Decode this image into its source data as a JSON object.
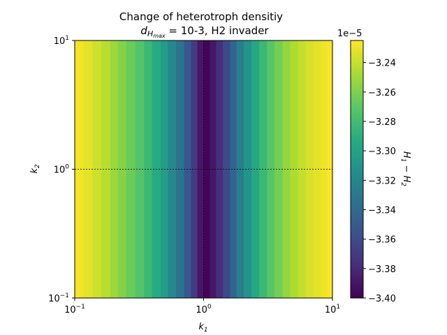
{
  "chart_data": {
    "type": "heatmap",
    "title_line1": "Change of heterotroph densitiy",
    "title_line2": "d_{H_max} = 10-3, H2 invader",
    "title_line2_parts": {
      "symbol": "d",
      "subscript": "H",
      "sub_subscript": "max",
      "rest": " = 10-3, H2 invader"
    },
    "xlabel": "k_1",
    "ylabel": "k_2",
    "x_scale": "log",
    "y_scale": "log",
    "xlim": [
      0.1,
      10
    ],
    "ylim": [
      0.1,
      10
    ],
    "x_ticks": [
      {
        "value": 0.1,
        "base": "10",
        "exp": "−1"
      },
      {
        "value": 1,
        "base": "10",
        "exp": "0"
      },
      {
        "value": 10,
        "base": "10",
        "exp": "1"
      }
    ],
    "y_ticks": [
      {
        "value": 0.1,
        "base": "10",
        "exp": "−1"
      },
      {
        "value": 1,
        "base": "10",
        "exp": "0"
      },
      {
        "value": 10,
        "base": "10",
        "exp": "1"
      }
    ],
    "colormap": "viridis",
    "color_range": [
      -3.4e-05,
      -3.225e-05
    ],
    "colorbar": {
      "label": "H_1 − H_2",
      "offset_text": "1e−5",
      "ticks": [
        {
          "value": -3.24,
          "label": "−3.24"
        },
        {
          "value": -3.26,
          "label": "−3.26"
        },
        {
          "value": -3.28,
          "label": "−3.28"
        },
        {
          "value": -3.3,
          "label": "−3.30"
        },
        {
          "value": -3.32,
          "label": "−3.32"
        },
        {
          "value": -3.34,
          "label": "−3.34"
        },
        {
          "value": -3.36,
          "label": "−3.36"
        },
        {
          "value": -3.38,
          "label": "−3.38"
        },
        {
          "value": -3.4,
          "label": "−3.40"
        }
      ]
    },
    "varies_along": "k_1 only (constant along k_2)",
    "k1_columns": [
      0.1,
      0.117,
      0.1374,
      0.1611,
      0.1889,
      0.2154,
      0.2512,
      0.2947,
      0.3455,
      0.3981,
      0.4642,
      0.5275,
      0.6105,
      0.7055,
      0.8,
      0.8936,
      1.0,
      1.1237,
      1.25,
      1.41,
      1.6,
      1.8,
      2.05,
      2.35,
      2.7,
      3.1,
      3.55,
      4.1,
      4.7,
      5.4,
      6.2,
      7.1,
      8.1,
      9.0
    ],
    "values_1e-5": [
      -3.228,
      -3.232,
      -3.238,
      -3.244,
      -3.252,
      -3.258,
      -3.266,
      -3.273,
      -3.283,
      -3.293,
      -3.304,
      -3.318,
      -3.334,
      -3.352,
      -3.37,
      -3.389,
      -3.398,
      -3.389,
      -3.377,
      -3.361,
      -3.343,
      -3.326,
      -3.31,
      -3.296,
      -3.283,
      -3.272,
      -3.263,
      -3.254,
      -3.247,
      -3.241,
      -3.236,
      -3.232,
      -3.229,
      -3.227
    ],
    "reference_lines": [
      {
        "orientation": "horizontal",
        "value": 1,
        "style": "dashed"
      },
      {
        "orientation": "vertical",
        "value": 1,
        "style": "dashed"
      },
      {
        "orientation": "horizontal",
        "value": 10,
        "style": "dashed"
      },
      {
        "orientation": "vertical",
        "value": 0.1,
        "style": "dashed"
      }
    ]
  }
}
